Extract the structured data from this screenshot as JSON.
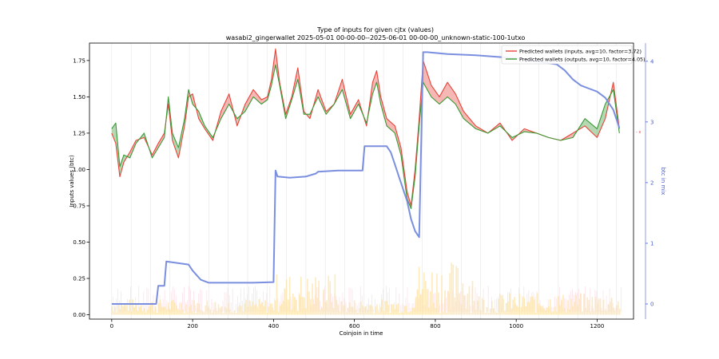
{
  "chart_data": {
    "type": "line",
    "title": "Type of inputs for given cjtx (values)",
    "subtitle": "wasabi2_gingerwallet 2025-05-01 00-00-00--2025-06-01 00-00-00_unknown-static-100-1utxo",
    "xlabel": "Coinjoin in time",
    "ylabel": "Inputs values (btc)",
    "ylabel_right": "btc in mix",
    "xlim": [
      -55,
      1290
    ],
    "ylim": [
      -0.03,
      1.87
    ],
    "ylim_right": [
      -0.25,
      4.3
    ],
    "x_ticks": [
      0,
      200,
      400,
      600,
      800,
      1000,
      1200
    ],
    "y_ticks": [
      0.0,
      0.25,
      0.5,
      0.75,
      1.0,
      1.25,
      1.5,
      1.75
    ],
    "y_ticks_right": [
      0,
      1,
      2,
      3,
      4
    ],
    "legend_position": "top-right",
    "series": [
      {
        "name": "Predicted wallets (inputs, avg=10, factor=3.72)",
        "color": "#e8443a",
        "x": [
          0,
          10,
          20,
          30,
          45,
          60,
          80,
          100,
          115,
          130,
          140,
          150,
          165,
          180,
          190,
          200,
          215,
          230,
          250,
          270,
          290,
          310,
          330,
          350,
          370,
          385,
          395,
          405,
          415,
          430,
          445,
          460,
          475,
          490,
          510,
          530,
          550,
          570,
          590,
          610,
          630,
          645,
          655,
          665,
          680,
          700,
          715,
          730,
          740,
          750,
          760,
          770,
          790,
          810,
          830,
          850,
          870,
          900,
          930,
          960,
          990,
          1020,
          1050,
          1080,
          1110,
          1140,
          1170,
          1200,
          1220,
          1240,
          1255
        ],
        "values": [
          1.25,
          1.18,
          0.95,
          1.05,
          1.12,
          1.2,
          1.22,
          1.1,
          1.18,
          1.25,
          1.45,
          1.2,
          1.08,
          1.3,
          1.5,
          1.52,
          1.35,
          1.28,
          1.2,
          1.4,
          1.52,
          1.3,
          1.45,
          1.55,
          1.48,
          1.5,
          1.62,
          1.83,
          1.6,
          1.38,
          1.5,
          1.7,
          1.4,
          1.35,
          1.55,
          1.4,
          1.45,
          1.62,
          1.38,
          1.48,
          1.3,
          1.6,
          1.68,
          1.5,
          1.35,
          1.3,
          1.15,
          0.85,
          0.75,
          1.0,
          1.35,
          1.75,
          1.58,
          1.5,
          1.6,
          1.52,
          1.4,
          1.3,
          1.25,
          1.32,
          1.2,
          1.28,
          1.25,
          1.22,
          1.2,
          1.25,
          1.3,
          1.22,
          1.35,
          1.6,
          1.28
        ]
      },
      {
        "name": "Predicted wallets (outputs, avg=10, factor=4.05)",
        "color": "#3a9a35",
        "x": [
          0,
          10,
          20,
          30,
          45,
          60,
          80,
          100,
          115,
          130,
          140,
          150,
          165,
          180,
          190,
          200,
          215,
          230,
          250,
          270,
          290,
          310,
          330,
          350,
          370,
          385,
          395,
          405,
          415,
          430,
          445,
          460,
          475,
          490,
          510,
          530,
          550,
          570,
          590,
          610,
          630,
          645,
          655,
          665,
          680,
          700,
          715,
          730,
          740,
          750,
          760,
          770,
          790,
          810,
          830,
          850,
          870,
          900,
          930,
          960,
          990,
          1020,
          1050,
          1080,
          1110,
          1140,
          1170,
          1200,
          1220,
          1240,
          1255
        ],
        "values": [
          1.28,
          1.32,
          1.02,
          1.1,
          1.08,
          1.18,
          1.25,
          1.08,
          1.15,
          1.22,
          1.5,
          1.25,
          1.15,
          1.35,
          1.55,
          1.45,
          1.4,
          1.3,
          1.22,
          1.35,
          1.45,
          1.35,
          1.4,
          1.5,
          1.45,
          1.48,
          1.58,
          1.72,
          1.58,
          1.35,
          1.48,
          1.62,
          1.38,
          1.38,
          1.5,
          1.38,
          1.45,
          1.55,
          1.35,
          1.45,
          1.32,
          1.52,
          1.6,
          1.45,
          1.3,
          1.25,
          1.1,
          0.8,
          0.73,
          0.95,
          1.3,
          1.6,
          1.5,
          1.45,
          1.5,
          1.45,
          1.35,
          1.28,
          1.25,
          1.3,
          1.22,
          1.26,
          1.25,
          1.22,
          1.2,
          1.22,
          1.35,
          1.28,
          1.45,
          1.55,
          1.25
        ]
      },
      {
        "name": "btc in mix",
        "axis": "right",
        "color": "#7b8fe0",
        "x": [
          0,
          60,
          110,
          115,
          130,
          135,
          190,
          200,
          220,
          240,
          300,
          350,
          400,
          405,
          410,
          440,
          480,
          505,
          510,
          560,
          620,
          625,
          680,
          690,
          700,
          710,
          720,
          730,
          740,
          750,
          760,
          770,
          780,
          830,
          900,
          1000,
          1050,
          1100,
          1120,
          1140,
          1160,
          1180,
          1200,
          1220,
          1240,
          1255
        ],
        "values": [
          0.0,
          0.0,
          0.0,
          0.3,
          0.3,
          0.7,
          0.65,
          0.55,
          0.4,
          0.35,
          0.35,
          0.35,
          0.36,
          2.2,
          2.1,
          2.08,
          2.1,
          2.15,
          2.18,
          2.2,
          2.2,
          2.6,
          2.6,
          2.5,
          2.3,
          2.1,
          1.9,
          1.7,
          1.4,
          1.2,
          1.1,
          4.15,
          4.15,
          4.12,
          4.1,
          4.05,
          4.0,
          3.95,
          3.85,
          3.7,
          3.6,
          3.55,
          3.5,
          3.4,
          3.2,
          2.9
        ]
      }
    ]
  }
}
